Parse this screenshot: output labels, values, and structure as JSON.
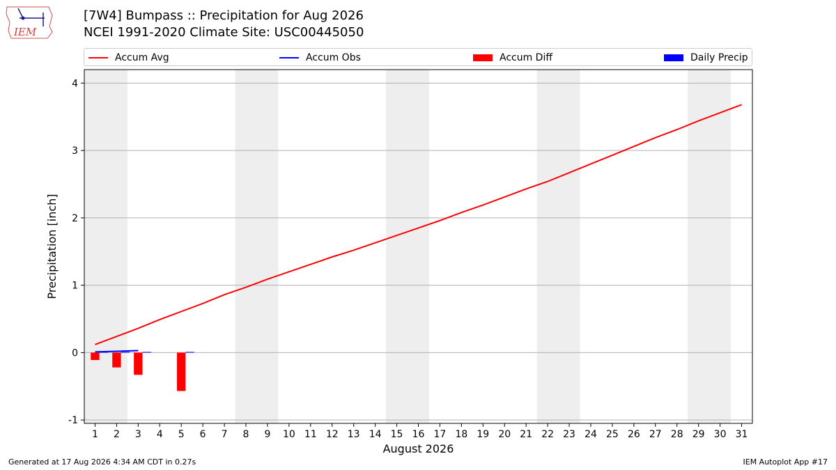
{
  "header": {
    "title": "[7W4] Bumpass :: Precipitation for Aug 2026",
    "subtitle": "NCEI 1991-2020 Climate Site: USC00445050",
    "logo_text": "IEM"
  },
  "footer": {
    "generated": "Generated at 17 Aug 2026 4:34 AM CDT in 0.27s",
    "app": "IEM Autoplot App #17"
  },
  "legend": [
    {
      "label": "Accum Avg",
      "kind": "line",
      "color": "#ff0000"
    },
    {
      "label": "Accum Obs",
      "kind": "line",
      "color": "#0000ff"
    },
    {
      "label": "Accum Diff",
      "kind": "patch",
      "color": "#ff0000"
    },
    {
      "label": "Daily Precip",
      "kind": "patch",
      "color": "#0000ff"
    }
  ],
  "chart_data": {
    "type": "bar",
    "xlabel": "August 2026",
    "ylabel": "Precipitation [inch]",
    "xlim": [
      0.5,
      31.5
    ],
    "ylim": [
      -1.05,
      4.2
    ],
    "yticks": [
      -1,
      0,
      1,
      2,
      3,
      4
    ],
    "xticks": [
      1,
      2,
      3,
      4,
      5,
      6,
      7,
      8,
      9,
      10,
      11,
      12,
      13,
      14,
      15,
      16,
      17,
      18,
      19,
      20,
      21,
      22,
      23,
      24,
      25,
      26,
      27,
      28,
      29,
      30,
      31
    ],
    "weekend_shading": [
      [
        0.5,
        2.5
      ],
      [
        7.5,
        9.5
      ],
      [
        14.5,
        16.5
      ],
      [
        21.5,
        23.5
      ],
      [
        28.5,
        30.5
      ]
    ],
    "grid": "horizontal",
    "legend_placement": "top",
    "series": [
      {
        "name": "Accum Avg",
        "kind": "line",
        "color": "#ff0000",
        "x": [
          1,
          2,
          3,
          4,
          5,
          6,
          7,
          8,
          9,
          10,
          11,
          12,
          13,
          14,
          15,
          16,
          17,
          18,
          19,
          20,
          21,
          22,
          23,
          24,
          25,
          26,
          27,
          28,
          29,
          30,
          31
        ],
        "values": [
          0.12,
          0.24,
          0.36,
          0.49,
          0.61,
          0.73,
          0.86,
          0.97,
          1.09,
          1.2,
          1.31,
          1.42,
          1.52,
          1.63,
          1.74,
          1.85,
          1.96,
          2.08,
          2.19,
          2.31,
          2.43,
          2.54,
          2.67,
          2.8,
          2.93,
          3.06,
          3.19,
          3.31,
          3.44,
          3.56,
          3.68
        ]
      },
      {
        "name": "Accum Obs",
        "kind": "line",
        "color": "#0000ff",
        "x": [
          1,
          2,
          3
        ],
        "values": [
          0.01,
          0.02,
          0.03
        ]
      },
      {
        "name": "Accum Diff",
        "kind": "bar",
        "color": "#ff0000",
        "x": [
          1,
          2,
          3,
          5
        ],
        "values": [
          -0.11,
          -0.22,
          -0.33,
          -0.57
        ]
      },
      {
        "name": "Daily Precip",
        "kind": "bar",
        "color": "#0000ff",
        "x": [
          1,
          2,
          3,
          5
        ],
        "values": [
          0.01,
          0.01,
          0.01,
          0.01
        ]
      }
    ]
  }
}
